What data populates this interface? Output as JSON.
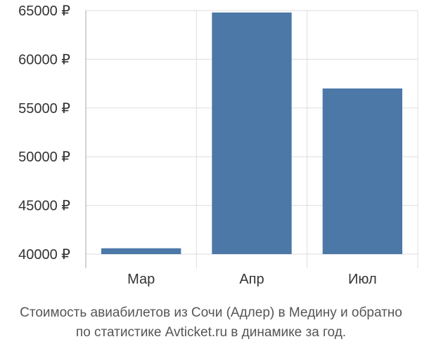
{
  "chart_data": {
    "type": "bar",
    "categories": [
      "Мар",
      "Апр",
      "Июл"
    ],
    "values": [
      40600,
      64800,
      57000
    ],
    "ylim": [
      40000,
      65000
    ],
    "y_ticks": [
      40000,
      45000,
      50000,
      55000,
      60000,
      65000
    ],
    "y_tick_labels": [
      "40000 ₽",
      "45000 ₽",
      "50000 ₽",
      "55000 ₽",
      "60000 ₽",
      "65000 ₽"
    ],
    "grid": true,
    "bar_color": "#4c78a8",
    "grid_color": "#dddddd",
    "axis_color": "#aaaaaa"
  },
  "caption": {
    "line1": "Стоимость авиабилетов из Сочи (Адлер) в Медину и обратно",
    "line2": "по статистике Avticket.ru в динамике за год."
  }
}
